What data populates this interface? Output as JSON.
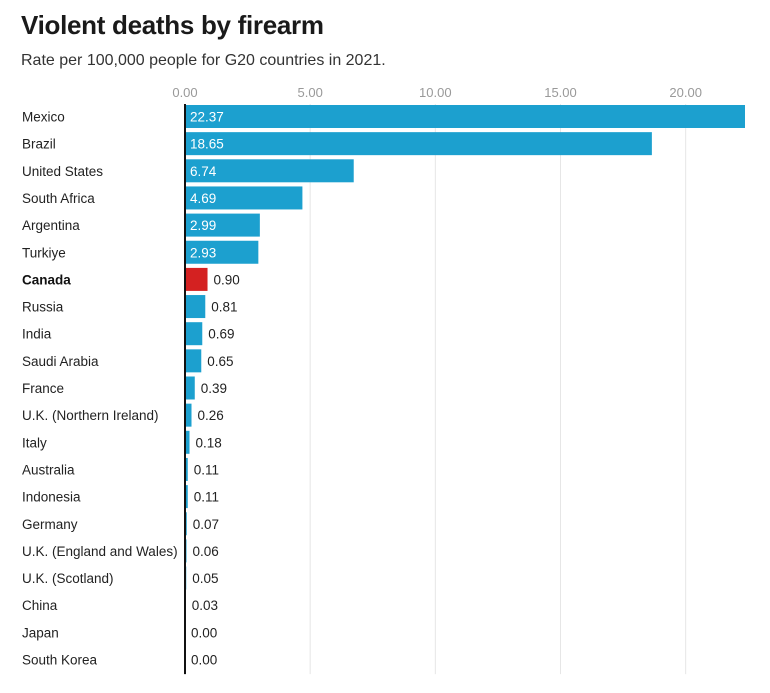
{
  "header": {
    "title": "Violent deaths by firearm",
    "subtitle": "Rate per 100,000 people for G20 countries in 2021."
  },
  "chart_data": {
    "type": "bar",
    "orientation": "horizontal",
    "title": "Violent deaths by firearm",
    "subtitle": "Rate per 100,000 people for G20 countries in 2021.",
    "xlabel": "",
    "ylabel": "",
    "xlim": [
      0,
      22.37
    ],
    "xticks": [
      0,
      5,
      10,
      15,
      20
    ],
    "xtick_labels": [
      "0.00",
      "5.00",
      "10.00",
      "15.00",
      "20.00"
    ],
    "grid": true,
    "colors": {
      "default": "#1ca0cf",
      "highlight": "#d42121"
    },
    "highlight": "Canada",
    "categories": [
      "Mexico",
      "Brazil",
      "United States",
      "South Africa",
      "Argentina",
      "Turkiye",
      "Canada",
      "Russia",
      "India",
      "Saudi Arabia",
      "France",
      "U.K. (Northern Ireland)",
      "Italy",
      "Australia",
      "Indonesia",
      "Germany",
      "U.K. (England and Wales)",
      "U.K. (Scotland)",
      "China",
      "Japan",
      "South Korea"
    ],
    "values": [
      22.37,
      18.65,
      6.74,
      4.69,
      2.99,
      2.93,
      0.9,
      0.81,
      0.69,
      0.65,
      0.39,
      0.26,
      0.18,
      0.11,
      0.11,
      0.07,
      0.06,
      0.05,
      0.03,
      0.0,
      0.0
    ],
    "value_labels": [
      "22.37",
      "18.65",
      "6.74",
      "4.69",
      "2.99",
      "2.93",
      "0.90",
      "0.81",
      "0.69",
      "0.65",
      "0.39",
      "0.26",
      "0.18",
      "0.11",
      "0.11",
      "0.07",
      "0.06",
      "0.05",
      "0.03",
      "0.00",
      "0.00"
    ]
  }
}
